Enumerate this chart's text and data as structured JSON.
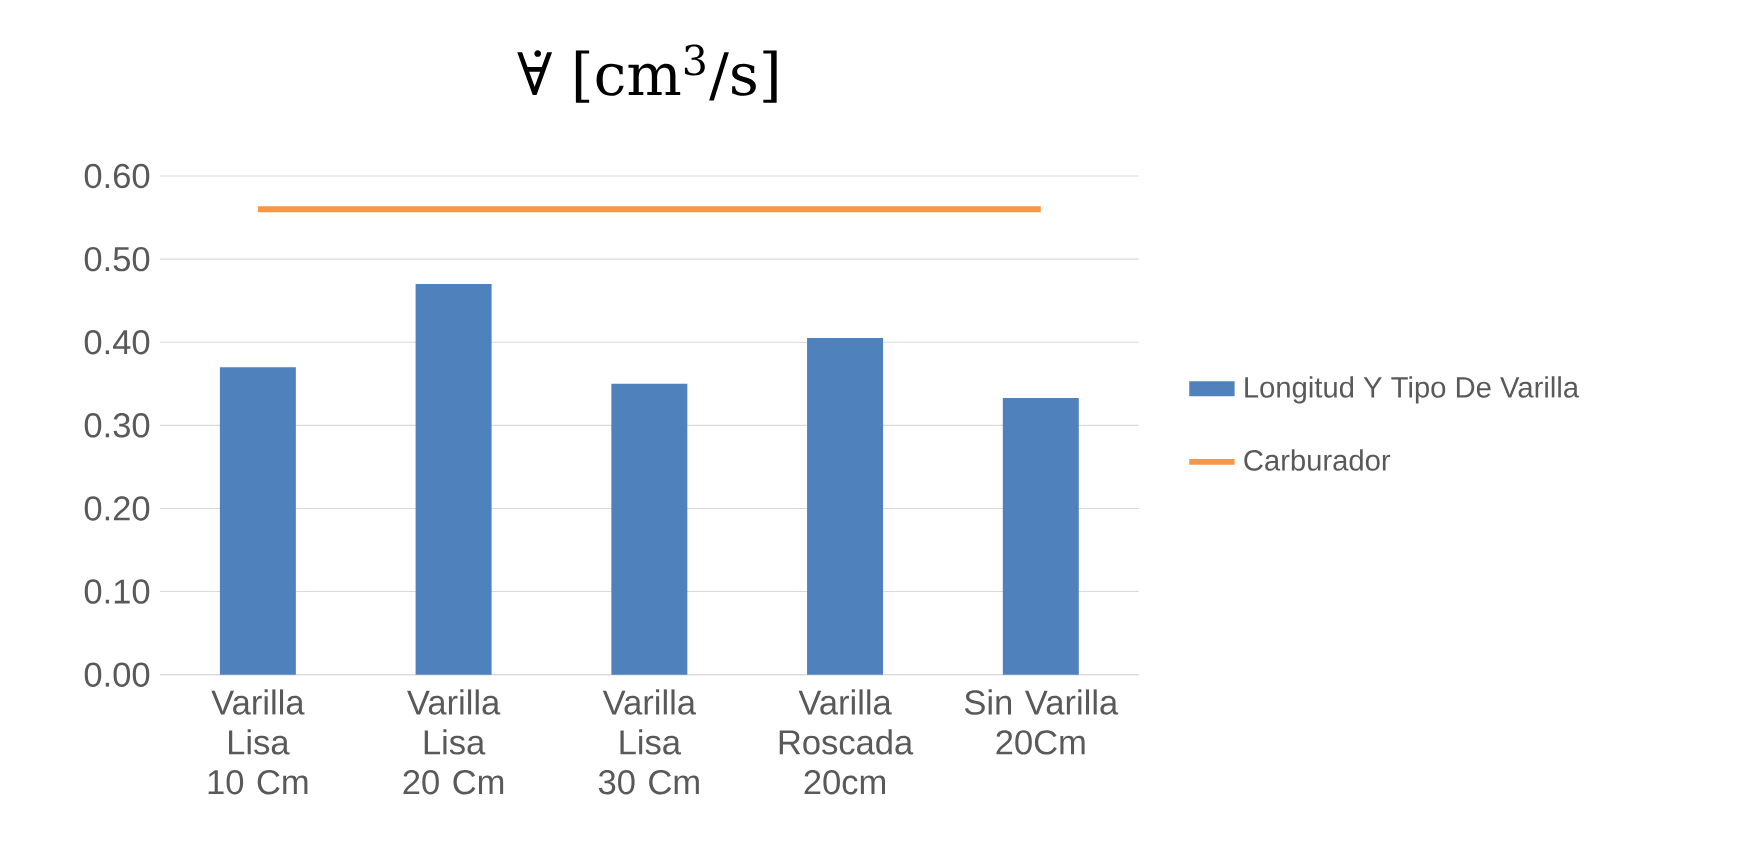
{
  "chart_data": {
    "type": "bar",
    "title": "∀̇ [cm$^{3}$/s]",
    "categories": [
      "Varilla Lisa 10 Cm",
      "Varilla Lisa 20 Cm",
      "Varilla Lisa 30 Cm",
      "Varilla Roscada 20cm",
      "Sin Varilla 20Cm"
    ],
    "series": [
      {
        "name": "Longitud Y Tipo De Varilla",
        "color": "#4f81bd",
        "values": [
          0.37,
          0.47,
          0.35,
          0.405,
          0.333
        ]
      },
      {
        "name": "Carburador",
        "type": "line",
        "color": "#f79646",
        "values": [
          0.56,
          0.56,
          0.56,
          0.56,
          0.56
        ]
      }
    ],
    "ylim": [
      0,
      0.6
    ],
    "yticks": [
      {
        "value": 0,
        "label": "0.00"
      },
      {
        "value": 0.1,
        "label": "0.10"
      },
      {
        "value": 0.2,
        "label": "0.20"
      },
      {
        "value": 0.3,
        "label": "0.30"
      },
      {
        "value": 0.4,
        "label": "0.40"
      },
      {
        "value": 0.5,
        "label": "0.50"
      },
      {
        "value": 0.6,
        "label": "0.60"
      }
    ],
    "grid": "y",
    "legend": "right",
    "marker": "none"
  }
}
